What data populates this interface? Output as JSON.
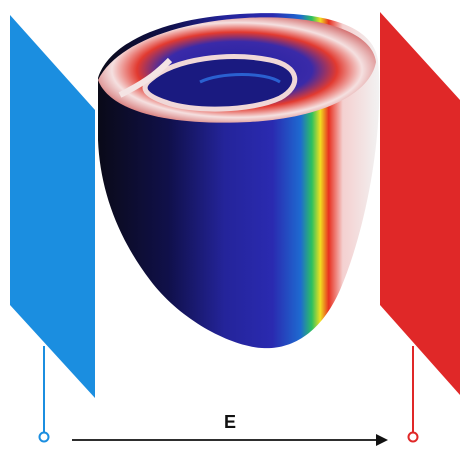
{
  "field_label": "E"
}
